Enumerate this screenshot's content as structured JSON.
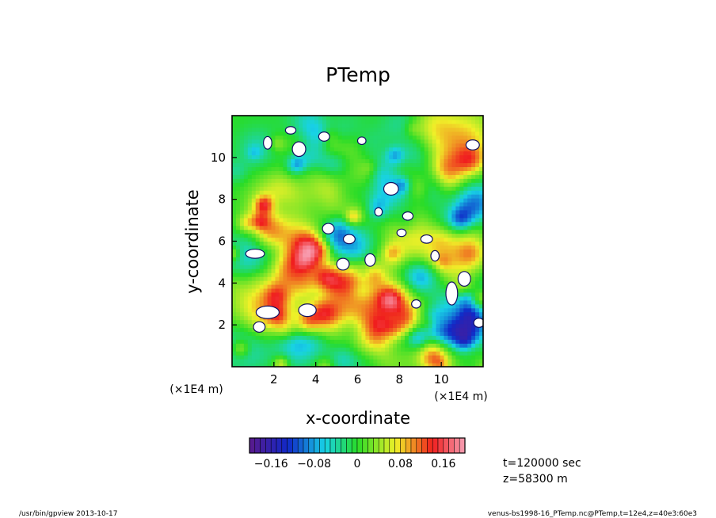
{
  "chart_data": {
    "type": "heatmap",
    "title": "PTemp",
    "xlabel": "x-coordinate",
    "ylabel": "y-coordinate",
    "x_unit_label": "(×1E4 m)",
    "y_unit_label": "(×1E4 m)",
    "xlim": [
      0,
      12
    ],
    "ylim": [
      0,
      12
    ],
    "x_ticks": [
      2,
      4,
      6,
      8,
      10
    ],
    "y_ticks": [
      2,
      4,
      6,
      8,
      10
    ],
    "x_tick_labels": [
      "2",
      "4",
      "6",
      "8",
      "10"
    ],
    "y_tick_labels": [
      "2",
      "4",
      "6",
      "8",
      "10"
    ],
    "colorbar": {
      "range": [
        -0.2,
        0.2
      ],
      "step": 0.01,
      "tick_values": [
        -0.16,
        -0.08,
        0,
        0.08,
        0.16
      ],
      "tick_labels": [
        "−0.16",
        "−0.08",
        "0",
        "0.08",
        "0.16"
      ],
      "out_of_range_fill": "#ffffff"
    },
    "colors": {
      "low": "#5a1a8c",
      "blue": "#1028c8",
      "cyan": "#18d2e6",
      "green": "#28dc28",
      "yellow": "#f0f028",
      "red": "#f01e1e",
      "pink": "#f8a0b4"
    },
    "features": [
      {
        "type": "high",
        "x": 6.6,
        "y": 2.1,
        "amp": 0.12,
        "r": 1.5
      },
      {
        "type": "high",
        "x": 1.5,
        "y": 3.1,
        "amp": 0.09,
        "r": 1.1
      },
      {
        "type": "high",
        "x": 3.0,
        "y": 5.5,
        "amp": 0.08,
        "r": 1.0
      },
      {
        "type": "high",
        "x": 11.0,
        "y": 10.8,
        "amp": 0.09,
        "r": 1.1
      },
      {
        "type": "high",
        "x": 4.8,
        "y": 9.0,
        "amp": 0.07,
        "r": 1.0
      },
      {
        "type": "high",
        "x": 8.5,
        "y": 6.3,
        "amp": 0.07,
        "r": 1.0
      },
      {
        "type": "high",
        "x": 10.5,
        "y": 5.0,
        "amp": 0.07,
        "r": 0.9
      },
      {
        "type": "high",
        "x": 2.0,
        "y": 7.8,
        "amp": 0.06,
        "r": 0.9
      },
      {
        "type": "high",
        "x": 8.0,
        "y": 10.0,
        "amp": 0.06,
        "r": 0.9
      },
      {
        "type": "low",
        "x": 4.3,
        "y": 11.2,
        "amp": -0.08,
        "r": 1.0
      },
      {
        "type": "low",
        "x": 7.4,
        "y": 8.7,
        "amp": -0.09,
        "r": 1.0
      },
      {
        "type": "low",
        "x": 5.3,
        "y": 6.2,
        "amp": -0.08,
        "r": 1.0
      },
      {
        "type": "low",
        "x": 10.8,
        "y": 2.0,
        "amp": -0.08,
        "r": 0.9
      },
      {
        "type": "low",
        "x": 3.2,
        "y": 1.2,
        "amp": -0.07,
        "r": 0.9
      },
      {
        "type": "low",
        "x": 1.0,
        "y": 5.2,
        "amp": -0.07,
        "r": 0.9
      },
      {
        "type": "low",
        "x": 9.2,
        "y": 3.2,
        "amp": -0.06,
        "r": 0.9
      },
      {
        "type": "low",
        "x": 0.5,
        "y": 0.9,
        "amp": -0.06,
        "r": 0.8
      },
      {
        "type": "low",
        "x": 11.6,
        "y": 8.0,
        "amp": -0.06,
        "r": 0.8
      }
    ],
    "regions": [
      {
        "x": 1.1,
        "y": 5.4,
        "rx": 0.45,
        "ry": 0.22
      },
      {
        "x": 5.3,
        "y": 4.9,
        "rx": 0.3,
        "ry": 0.28
      },
      {
        "x": 6.6,
        "y": 5.1,
        "rx": 0.25,
        "ry": 0.3
      },
      {
        "x": 5.6,
        "y": 6.1,
        "rx": 0.28,
        "ry": 0.22
      },
      {
        "x": 8.1,
        "y": 6.4,
        "rx": 0.22,
        "ry": 0.18
      },
      {
        "x": 10.5,
        "y": 3.5,
        "rx": 0.28,
        "ry": 0.55
      },
      {
        "x": 11.1,
        "y": 4.2,
        "rx": 0.3,
        "ry": 0.35
      },
      {
        "x": 11.5,
        "y": 10.6,
        "rx": 0.32,
        "ry": 0.24
      },
      {
        "x": 3.2,
        "y": 10.4,
        "rx": 0.32,
        "ry": 0.35
      },
      {
        "x": 1.7,
        "y": 10.7,
        "rx": 0.2,
        "ry": 0.3
      },
      {
        "x": 4.4,
        "y": 11.0,
        "rx": 0.26,
        "ry": 0.22
      },
      {
        "x": 7.6,
        "y": 8.5,
        "rx": 0.35,
        "ry": 0.3
      },
      {
        "x": 8.4,
        "y": 7.2,
        "rx": 0.25,
        "ry": 0.2
      },
      {
        "x": 3.6,
        "y": 2.7,
        "rx": 0.42,
        "ry": 0.3
      },
      {
        "x": 1.7,
        "y": 2.6,
        "rx": 0.55,
        "ry": 0.3
      },
      {
        "x": 1.3,
        "y": 1.9,
        "rx": 0.28,
        "ry": 0.25
      },
      {
        "x": 4.6,
        "y": 6.6,
        "rx": 0.28,
        "ry": 0.25
      },
      {
        "x": 9.3,
        "y": 6.1,
        "rx": 0.28,
        "ry": 0.2
      },
      {
        "x": 11.8,
        "y": 2.1,
        "rx": 0.25,
        "ry": 0.22
      },
      {
        "x": 8.8,
        "y": 3.0,
        "rx": 0.22,
        "ry": 0.2
      },
      {
        "x": 2.8,
        "y": 11.3,
        "rx": 0.25,
        "ry": 0.18
      },
      {
        "x": 6.2,
        "y": 10.8,
        "rx": 0.2,
        "ry": 0.18
      },
      {
        "x": 9.7,
        "y": 5.3,
        "rx": 0.2,
        "ry": 0.25
      },
      {
        "x": 7.0,
        "y": 7.4,
        "rx": 0.18,
        "ry": 0.2
      }
    ],
    "noise_amp": 0.05
  },
  "annotations": {
    "time": "t=120000 sec",
    "height": "z=58300 m"
  },
  "footer": {
    "left": "/usr/bin/gpview   2013-10-17",
    "right": "venus-bs1998-16_PTemp.nc@PTemp,t=12e4,z=40e3:60e3"
  }
}
